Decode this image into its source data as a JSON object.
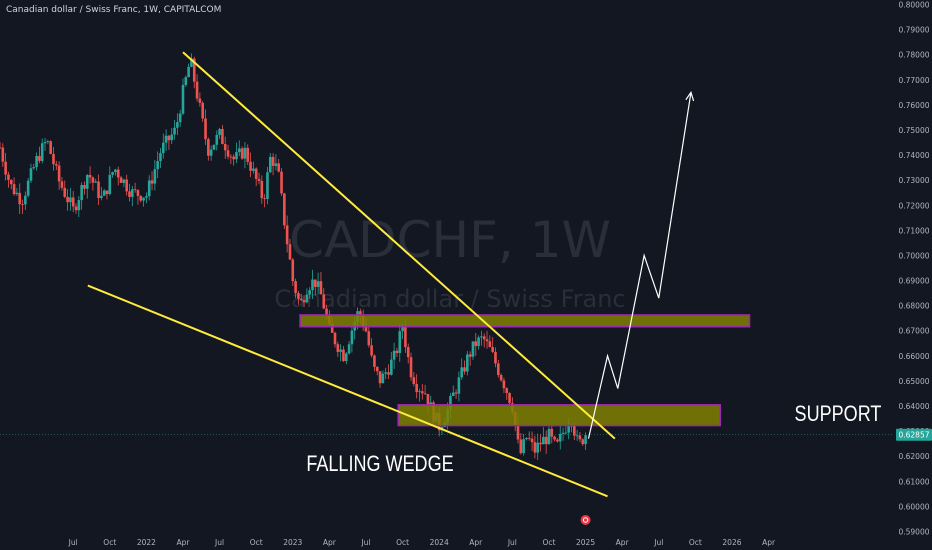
{
  "header": {
    "symbol_line": "Canadian dollar / Swiss Franc, 1W, CAPITALCOM"
  },
  "watermark": {
    "ticker": "CADCHF, 1W",
    "name": "Canadian dollar / Swiss Franc"
  },
  "annotations": {
    "pattern_label": "FALLING WEDGE",
    "support_label": "SUPPORT"
  },
  "price_badge": {
    "value": "0.62857",
    "color": "#26a69a"
  },
  "colors": {
    "background": "#131722",
    "bull": "#26a69a",
    "bear": "#ef5350",
    "trendline": "#ffeb3b",
    "zone_fill": "#808000",
    "zone_border": "#9c27b0",
    "projection": "#ffffff"
  },
  "chart_data": {
    "type": "candlestick",
    "title": "Canadian dollar / Swiss Franc, 1W, CAPITALCOM",
    "x_start": 2021.0,
    "x_end": 2027.1,
    "y_range": [
      0.5882,
      0.8018
    ],
    "y_ticks": [
      "0.80000",
      "0.79000",
      "0.78000",
      "0.77000",
      "0.76000",
      "0.75000",
      "0.74000",
      "0.73000",
      "0.72000",
      "0.71000",
      "0.70000",
      "0.69000",
      "0.68000",
      "0.67000",
      "0.66000",
      "0.65000",
      "0.64000",
      "0.63000",
      "0.62000",
      "0.61000",
      "0.60000",
      "0.59000"
    ],
    "x_ticks": [
      {
        "label": "Jul",
        "t": 2021.5
      },
      {
        "label": "Oct",
        "t": 2021.75
      },
      {
        "label": "2022",
        "t": 2022.0
      },
      {
        "label": "Apr",
        "t": 2022.25
      },
      {
        "label": "Jul",
        "t": 2022.5
      },
      {
        "label": "Oct",
        "t": 2022.75
      },
      {
        "label": "2023",
        "t": 2023.0
      },
      {
        "label": "Apr",
        "t": 2023.25
      },
      {
        "label": "Jul",
        "t": 2023.5
      },
      {
        "label": "Oct",
        "t": 2023.75
      },
      {
        "label": "2024",
        "t": 2024.0
      },
      {
        "label": "Apr",
        "t": 2024.25
      },
      {
        "label": "Jul",
        "t": 2024.5
      },
      {
        "label": "Oct",
        "t": 2024.75
      },
      {
        "label": "2025",
        "t": 2025.0
      },
      {
        "label": "Apr",
        "t": 2025.25
      },
      {
        "label": "Jul",
        "t": 2025.5
      },
      {
        "label": "Oct",
        "t": 2025.75
      },
      {
        "label": "2026",
        "t": 2026.0
      },
      {
        "label": "Apr",
        "t": 2026.25
      }
    ],
    "close_path": [
      [
        2021.0,
        0.743
      ],
      [
        2021.07,
        0.728
      ],
      [
        2021.15,
        0.722
      ],
      [
        2021.25,
        0.738
      ],
      [
        2021.32,
        0.746
      ],
      [
        2021.4,
        0.73
      ],
      [
        2021.5,
        0.718
      ],
      [
        2021.6,
        0.733
      ],
      [
        2021.7,
        0.722
      ],
      [
        2021.78,
        0.735
      ],
      [
        2021.9,
        0.725
      ],
      [
        2022.0,
        0.724
      ],
      [
        2022.1,
        0.742
      ],
      [
        2022.2,
        0.75
      ],
      [
        2022.25,
        0.765
      ],
      [
        2022.3,
        0.778
      ],
      [
        2022.36,
        0.76
      ],
      [
        2022.42,
        0.742
      ],
      [
        2022.5,
        0.748
      ],
      [
        2022.6,
        0.738
      ],
      [
        2022.67,
        0.742
      ],
      [
        2022.75,
        0.73
      ],
      [
        2022.8,
        0.722
      ],
      [
        2022.85,
        0.74
      ],
      [
        2022.9,
        0.733
      ],
      [
        2022.95,
        0.71
      ],
      [
        2023.0,
        0.69
      ],
      [
        2023.05,
        0.68
      ],
      [
        2023.1,
        0.688
      ],
      [
        2023.15,
        0.69
      ],
      [
        2023.2,
        0.683
      ],
      [
        2023.25,
        0.67
      ],
      [
        2023.3,
        0.665
      ],
      [
        2023.35,
        0.66
      ],
      [
        2023.4,
        0.67
      ],
      [
        2023.45,
        0.678
      ],
      [
        2023.5,
        0.67
      ],
      [
        2023.55,
        0.655
      ],
      [
        2023.6,
        0.65
      ],
      [
        2023.65,
        0.655
      ],
      [
        2023.7,
        0.66
      ],
      [
        2023.75,
        0.672
      ],
      [
        2023.8,
        0.655
      ],
      [
        2023.85,
        0.648
      ],
      [
        2023.9,
        0.646
      ],
      [
        2023.95,
        0.638
      ],
      [
        2024.0,
        0.632
      ],
      [
        2024.05,
        0.637
      ],
      [
        2024.1,
        0.645
      ],
      [
        2024.15,
        0.652
      ],
      [
        2024.2,
        0.66
      ],
      [
        2024.25,
        0.665
      ],
      [
        2024.3,
        0.667
      ],
      [
        2024.35,
        0.662
      ],
      [
        2024.4,
        0.655
      ],
      [
        2024.45,
        0.648
      ],
      [
        2024.5,
        0.64
      ],
      [
        2024.55,
        0.62
      ],
      [
        2024.6,
        0.628
      ],
      [
        2024.65,
        0.622
      ],
      [
        2024.7,
        0.626
      ],
      [
        2024.75,
        0.628
      ],
      [
        2024.8,
        0.623
      ],
      [
        2024.85,
        0.63
      ],
      [
        2024.9,
        0.636
      ],
      [
        2024.95,
        0.624
      ],
      [
        2025.0,
        0.629
      ]
    ],
    "trendlines": [
      {
        "name": "wedge-top",
        "points": [
          [
            2022.25,
            0.781
          ],
          [
            2025.2,
            0.627
          ]
        ]
      },
      {
        "name": "wedge-bottom",
        "points": [
          [
            2021.6,
            0.688
          ],
          [
            2025.15,
            0.604
          ]
        ]
      }
    ],
    "zones": [
      {
        "name": "resistance-zone",
        "t0": 2023.05,
        "t1": 2026.12,
        "y_low": 0.6716,
        "y_high": 0.6763
      },
      {
        "name": "support-zone",
        "t0": 2023.72,
        "t1": 2025.92,
        "y_low": 0.6322,
        "y_high": 0.6405
      }
    ],
    "projection": [
      [
        2025.02,
        0.627
      ],
      [
        2025.15,
        0.66
      ],
      [
        2025.22,
        0.647
      ],
      [
        2025.4,
        0.7
      ],
      [
        2025.5,
        0.683
      ],
      [
        2025.72,
        0.765
      ]
    ],
    "last_price": 0.62857
  }
}
